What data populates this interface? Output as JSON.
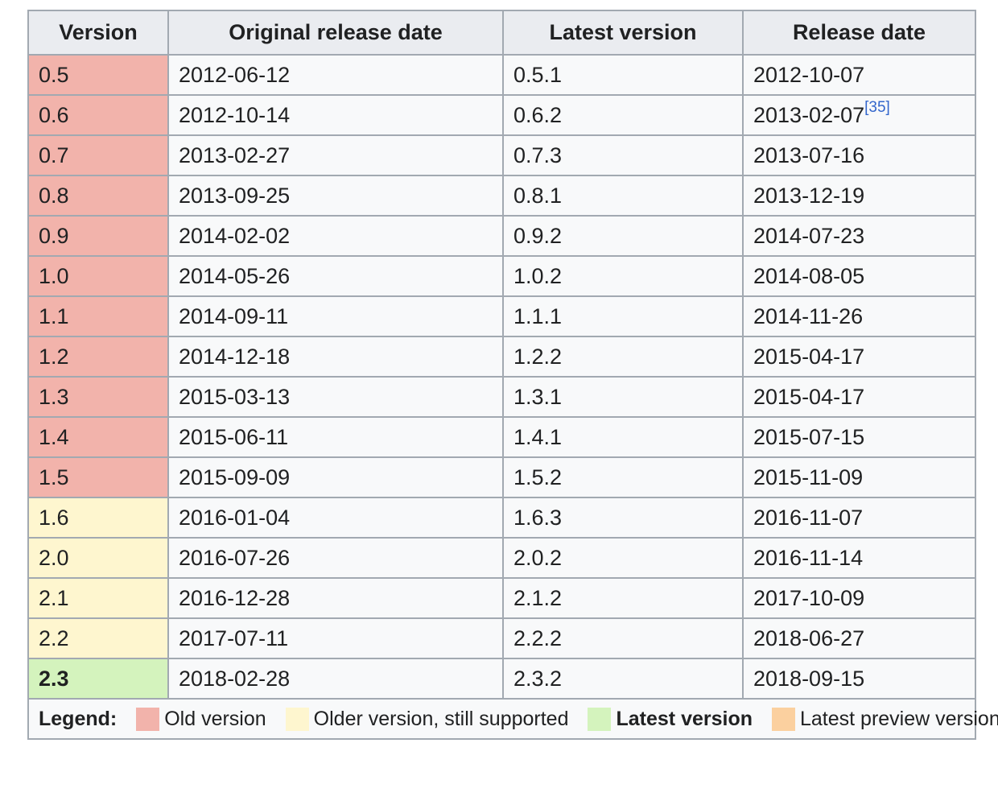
{
  "table": {
    "headers": [
      "Version",
      "Original release date",
      "Latest version",
      "Release date"
    ],
    "rows": [
      {
        "version": "0.5",
        "original_release": "2012-06-12",
        "latest": "0.5.1",
        "release": "2012-10-07",
        "status": "old"
      },
      {
        "version": "0.6",
        "original_release": "2012-10-14",
        "latest": "0.6.2",
        "release": "2013-02-07",
        "ref": "[35]",
        "status": "old"
      },
      {
        "version": "0.7",
        "original_release": "2013-02-27",
        "latest": "0.7.3",
        "release": "2013-07-16",
        "status": "old"
      },
      {
        "version": "0.8",
        "original_release": "2013-09-25",
        "latest": "0.8.1",
        "release": "2013-12-19",
        "status": "old"
      },
      {
        "version": "0.9",
        "original_release": "2014-02-02",
        "latest": "0.9.2",
        "release": "2014-07-23",
        "status": "old"
      },
      {
        "version": "1.0",
        "original_release": "2014-05-26",
        "latest": "1.0.2",
        "release": "2014-08-05",
        "status": "old"
      },
      {
        "version": "1.1",
        "original_release": "2014-09-11",
        "latest": "1.1.1",
        "release": "2014-11-26",
        "status": "old"
      },
      {
        "version": "1.2",
        "original_release": "2014-12-18",
        "latest": "1.2.2",
        "release": "2015-04-17",
        "status": "old"
      },
      {
        "version": "1.3",
        "original_release": "2015-03-13",
        "latest": "1.3.1",
        "release": "2015-04-17",
        "status": "old"
      },
      {
        "version": "1.4",
        "original_release": "2015-06-11",
        "latest": "1.4.1",
        "release": "2015-07-15",
        "status": "old"
      },
      {
        "version": "1.5",
        "original_release": "2015-09-09",
        "latest": "1.5.2",
        "release": "2015-11-09",
        "status": "old"
      },
      {
        "version": "1.6",
        "original_release": "2016-01-04",
        "latest": "1.6.3",
        "release": "2016-11-07",
        "status": "supported"
      },
      {
        "version": "2.0",
        "original_release": "2016-07-26",
        "latest": "2.0.2",
        "release": "2016-11-14",
        "status": "supported"
      },
      {
        "version": "2.1",
        "original_release": "2016-12-28",
        "latest": "2.1.2",
        "release": "2017-10-09",
        "status": "supported"
      },
      {
        "version": "2.2",
        "original_release": "2017-07-11",
        "latest": "2.2.2",
        "release": "2018-06-27",
        "status": "supported"
      },
      {
        "version": "2.3",
        "original_release": "2018-02-28",
        "latest": "2.3.2",
        "release": "2018-09-15",
        "status": "latest"
      }
    ]
  },
  "legend": {
    "title": "Legend:",
    "items": [
      {
        "key": "old",
        "label": "Old version",
        "color": "#f2b3ab",
        "bold": false
      },
      {
        "key": "supported",
        "label": "Older version, still supported",
        "color": "#fef6cf",
        "bold": false
      },
      {
        "key": "latest",
        "label": "Latest version",
        "color": "#d4f3bd",
        "bold": true
      },
      {
        "key": "preview",
        "label": "Latest preview version",
        "color": "#fbd09f",
        "bold": false
      }
    ]
  }
}
